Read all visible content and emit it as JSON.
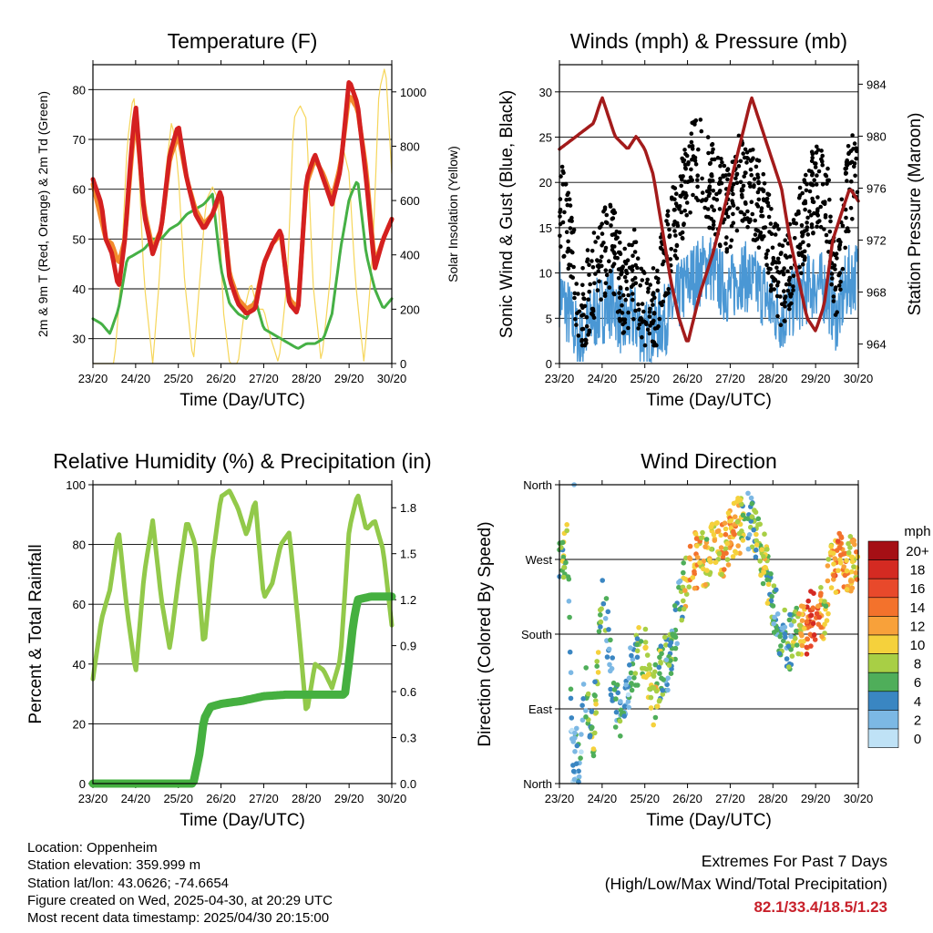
{
  "x_ticks": [
    "23/20",
    "24/20",
    "25/20",
    "26/20",
    "27/20",
    "28/20",
    "29/20",
    "30/20"
  ],
  "colors": {
    "temp_2m": "#d42020",
    "temp_9m": "#f28a2c",
    "dewpoint": "#45b045",
    "solar": "#f6d65a",
    "wind": "#4a97d4",
    "gust": "#000000",
    "pressure": "#a31b1b",
    "rh": "#92c94a",
    "rain": "#45b040"
  },
  "chart_data": [
    {
      "type": "line",
      "title": "Temperature (F)",
      "xlabel": "Time (Day/UTC)",
      "ylabel": "2m & 9m T (Red, Orange) & 2m Td (Green)",
      "y2label": "Solar Insolation (Yellow)",
      "ylim": [
        25,
        85
      ],
      "y2lim": [
        0,
        1100
      ],
      "yticks": [
        30,
        40,
        50,
        60,
        70,
        80
      ],
      "y2ticks": [
        0,
        200,
        400,
        600,
        800,
        1000
      ],
      "grid": true,
      "series": [
        {
          "axis": "left",
          "x": [
            0,
            0.2,
            0.3,
            0.45,
            0.6,
            0.75,
            0.9,
            1.0,
            1.2,
            1.4,
            1.6,
            1.8,
            2.0,
            2.2,
            2.4,
            2.6,
            2.8,
            3.0,
            3.2,
            3.4,
            3.6,
            3.8,
            4.0,
            4.2,
            4.4,
            4.6,
            4.8,
            5.0,
            5.2,
            5.4,
            5.6,
            5.8,
            6.0,
            6.2,
            6.4,
            6.6,
            6.8,
            7.0
          ],
          "values": [
            62,
            57,
            50,
            47,
            40,
            50,
            68,
            77,
            55,
            47,
            52,
            67,
            73,
            62,
            55,
            52,
            55,
            60,
            42,
            37,
            35,
            36,
            45,
            49,
            52,
            37,
            35,
            62,
            67,
            62,
            57,
            64,
            82,
            77,
            62,
            44,
            50,
            54
          ]
        },
        {
          "axis": "left",
          "x": [
            0,
            0.3,
            0.45,
            0.6,
            0.75,
            0.9,
            1.0,
            1.2,
            1.4,
            1.6,
            1.8,
            2.0,
            2.2,
            2.4,
            2.6,
            2.8,
            3.0,
            3.2,
            3.4,
            3.6,
            3.8,
            4.0,
            4.2,
            4.4,
            4.6,
            4.8,
            5.0,
            5.2,
            5.4,
            5.6,
            5.8,
            6.0,
            6.2,
            6.4,
            6.6,
            6.8,
            7.0
          ],
          "values": [
            61,
            50,
            49,
            45,
            50,
            66,
            75,
            56,
            48,
            52,
            66,
            71,
            62,
            56,
            53,
            55,
            59,
            43,
            38,
            36,
            37,
            45,
            49,
            51,
            38,
            36,
            61,
            66,
            63,
            58,
            65,
            79,
            76,
            64,
            45,
            50,
            54
          ]
        },
        {
          "axis": "left",
          "x": [
            0,
            0.2,
            0.4,
            0.6,
            0.8,
            1.0,
            1.2,
            1.4,
            1.6,
            1.8,
            2.0,
            2.2,
            2.4,
            2.6,
            2.8,
            3.0,
            3.2,
            3.4,
            3.6,
            3.8,
            4.0,
            4.2,
            4.4,
            4.6,
            4.8,
            5.0,
            5.2,
            5.4,
            5.6,
            5.8,
            6.0,
            6.2,
            6.4,
            6.6,
            6.8,
            7.0
          ],
          "values": [
            34,
            33,
            31,
            36,
            46,
            47,
            48,
            50,
            50,
            52,
            53,
            55,
            56,
            57,
            59,
            44,
            37,
            35,
            34,
            38,
            32,
            31,
            30,
            29,
            28,
            29,
            29,
            30,
            35,
            48,
            58,
            62,
            47,
            40,
            36,
            38
          ]
        },
        {
          "axis": "right",
          "x": [
            0,
            0.5,
            0.65,
            0.8,
            0.95,
            1.05,
            1.2,
            1.4,
            1.55,
            1.7,
            1.85,
            2.0,
            2.15,
            2.35,
            2.5,
            2.65,
            2.8,
            2.95,
            3.05,
            3.2,
            3.4,
            3.55,
            3.7,
            3.85,
            4.0,
            4.15,
            4.35,
            4.55,
            4.7,
            4.85,
            5.0,
            5.15,
            5.35,
            5.55,
            5.7,
            5.85,
            6.0,
            6.15,
            6.35,
            6.55,
            6.7,
            6.85,
            7.0
          ],
          "values": [
            0,
            0,
            300,
            800,
            1000,
            800,
            300,
            0,
            300,
            700,
            900,
            700,
            300,
            0,
            300,
            600,
            650,
            600,
            200,
            0,
            0,
            200,
            300,
            200,
            200,
            100,
            0,
            300,
            900,
            950,
            900,
            300,
            0,
            300,
            700,
            800,
            700,
            300,
            0,
            400,
            1000,
            1100,
            700
          ]
        }
      ]
    },
    {
      "type": "scatter",
      "title": "Winds (mph) & Pressure (mb)",
      "xlabel": "Time (Day/UTC)",
      "ylabel": "Sonic Wind & Gust (Blue, Black)",
      "y2label": "Station Pressure (Maroon)",
      "ylim": [
        0,
        33
      ],
      "y2lim": [
        962.5,
        985.5
      ],
      "yticks": [
        0,
        5,
        10,
        15,
        20,
        25,
        30
      ],
      "y2ticks": [
        964,
        968,
        972,
        976,
        980,
        984
      ],
      "grid": true,
      "series": [
        {
          "axis": "left",
          "x": [
            0,
            0.25,
            0.5,
            0.75,
            1.0,
            1.25,
            1.5,
            1.75,
            2.0,
            2.25,
            2.5,
            2.75,
            3.0,
            3.25,
            3.5,
            3.75,
            4.0,
            4.25,
            4.5,
            4.75,
            5.0,
            5.25,
            5.5,
            5.75,
            6.0,
            6.25,
            6.5,
            6.75,
            7.0
          ],
          "values": [
            8,
            5,
            2,
            5,
            6,
            7,
            4,
            5,
            3,
            4,
            5,
            7,
            9,
            10,
            11,
            9,
            8,
            10,
            9,
            8,
            6,
            5,
            7,
            8,
            9,
            8,
            5,
            9,
            10
          ]
        },
        {
          "axis": "left",
          "x": [
            0,
            0.25,
            0.5,
            0.75,
            1.0,
            1.25,
            1.5,
            1.75,
            2.0,
            2.25,
            2.5,
            2.75,
            3.0,
            3.25,
            3.5,
            3.75,
            4.0,
            4.25,
            4.5,
            4.75,
            5.0,
            5.25,
            5.5,
            5.75,
            6.0,
            6.25,
            6.5,
            6.75,
            7.0
          ],
          "values": [
            18,
            14,
            5,
            9,
            12,
            13,
            8,
            10,
            5,
            6,
            12,
            16,
            21,
            23,
            20,
            18,
            17,
            21,
            19,
            17,
            12,
            8,
            13,
            16,
            20,
            18,
            9,
            19,
            22
          ]
        },
        {
          "axis": "right",
          "x": [
            0,
            0.4,
            0.8,
            1.0,
            1.3,
            1.6,
            1.8,
            2.0,
            2.2,
            2.4,
            2.6,
            2.8,
            3.0,
            3.3,
            3.6,
            3.9,
            4.2,
            4.5,
            4.8,
            5.0,
            5.2,
            5.4,
            5.6,
            5.8,
            6.0,
            6.2,
            6.4,
            6.6,
            6.8,
            7.0
          ],
          "values": [
            979,
            980,
            981,
            983,
            980,
            979,
            980,
            979,
            977,
            973,
            969,
            966,
            964,
            968,
            971,
            975,
            979,
            983,
            980,
            978,
            976,
            972,
            969,
            966,
            965,
            967,
            972,
            974,
            976,
            975
          ]
        }
      ]
    },
    {
      "type": "line",
      "title": "Relative Humidity (%) & Precipitation (in)",
      "xlabel": "Time (Day/UTC)",
      "ylabel": "Percent & Total Rainfall",
      "ylim": [
        0,
        100
      ],
      "y2lim": [
        0,
        1.95
      ],
      "yticks": [
        0,
        20,
        40,
        60,
        80,
        100
      ],
      "y2ticks": [
        0.0,
        0.3,
        0.6,
        0.9,
        1.2,
        1.5,
        1.8
      ],
      "grid": true,
      "series": [
        {
          "axis": "left",
          "x": [
            0,
            0.2,
            0.4,
            0.6,
            0.8,
            1.0,
            1.2,
            1.4,
            1.6,
            1.8,
            2.0,
            2.2,
            2.4,
            2.6,
            2.8,
            3.0,
            3.2,
            3.4,
            3.6,
            3.8,
            4.0,
            4.2,
            4.4,
            4.6,
            4.8,
            5.0,
            5.2,
            5.4,
            5.6,
            5.8,
            6.0,
            6.2,
            6.4,
            6.6,
            6.8,
            7.0
          ],
          "values": [
            35,
            55,
            65,
            85,
            58,
            37,
            70,
            88,
            62,
            45,
            68,
            88,
            80,
            45,
            75,
            96,
            98,
            92,
            83,
            95,
            62,
            67,
            80,
            84,
            55,
            23,
            40,
            38,
            32,
            42,
            85,
            97,
            85,
            88,
            78,
            53
          ]
        },
        {
          "axis": "right",
          "x": [
            0,
            1.0,
            2.0,
            2.35,
            2.5,
            2.6,
            2.75,
            3.0,
            3.5,
            4.0,
            4.5,
            5.0,
            5.5,
            5.9,
            6.0,
            6.1,
            6.2,
            6.5,
            7.0
          ],
          "values": [
            0,
            0,
            0,
            0,
            0.2,
            0.42,
            0.5,
            0.52,
            0.54,
            0.57,
            0.58,
            0.58,
            0.58,
            0.58,
            0.8,
            1.05,
            1.2,
            1.22,
            1.22
          ]
        }
      ]
    },
    {
      "type": "scatter",
      "title": "Wind Direction",
      "xlabel": "Time (Day/UTC)",
      "ylabel": "Direction (Colored By Speed)",
      "yticks": [
        "North",
        "East",
        "South",
        "West",
        "North"
      ],
      "ylim": [
        0,
        360
      ],
      "colorbar_unit": "mph",
      "colorbar_labels": [
        "20+",
        "18",
        "16",
        "14",
        "12",
        "10",
        "8",
        "6",
        "4",
        "2",
        "0"
      ],
      "colorbar_colors": [
        "#a50f15",
        "#d42a22",
        "#e8492b",
        "#f3722c",
        "#f8a13a",
        "#f5d13c",
        "#a8cf45",
        "#4fae5a",
        "#3a86c2",
        "#7cb8e4",
        "#bfe2f6"
      ],
      "series": [
        {
          "name": "direction",
          "x": [
            0,
            0.1,
            0.2,
            0.3,
            0.45,
            0.6,
            0.8,
            1.0,
            1.2,
            1.4,
            1.6,
            1.8,
            2.0,
            2.2,
            2.4,
            2.6,
            2.8,
            3.0,
            3.2,
            3.4,
            3.6,
            3.8,
            4.0,
            4.2,
            4.4,
            4.6,
            4.8,
            5.0,
            5.2,
            5.4,
            5.6,
            5.8,
            6.0,
            6.2,
            6.4,
            6.6,
            6.8,
            7.0
          ],
          "values": [
            265,
            270,
            280,
            35,
            30,
            120,
            60,
            250,
            140,
            70,
            120,
            150,
            160,
            100,
            140,
            150,
            210,
            260,
            270,
            270,
            280,
            280,
            300,
            310,
            320,
            300,
            270,
            220,
            180,
            170,
            180,
            190,
            205,
            210,
            260,
            270,
            265,
            260
          ],
          "speed": [
            5,
            8,
            6,
            3,
            3,
            4,
            8,
            6,
            4,
            5,
            3,
            6,
            9,
            10,
            6,
            5,
            4,
            11,
            12,
            10,
            9,
            11,
            12,
            10,
            4,
            7,
            9,
            5,
            4,
            5,
            10,
            15,
            17,
            8,
            12,
            13,
            10,
            12
          ]
        }
      ]
    }
  ],
  "info": {
    "location": "Location: Oppenheim",
    "elevation": "Station elevation: 359.999 m",
    "latlon": "Station lat/lon: 43.0626; -74.6654",
    "created": "Figure created on Wed, 2025-04-30, at 20:29 UTC",
    "latest": "Most recent data timestamp: 2025/04/30 20:15:00"
  },
  "extremes": {
    "title": "Extremes For Past 7 Days",
    "subtitle": "(High/Low/Max Wind/Total Precipitation)",
    "value": "82.1/33.4/18.5/1.23"
  }
}
